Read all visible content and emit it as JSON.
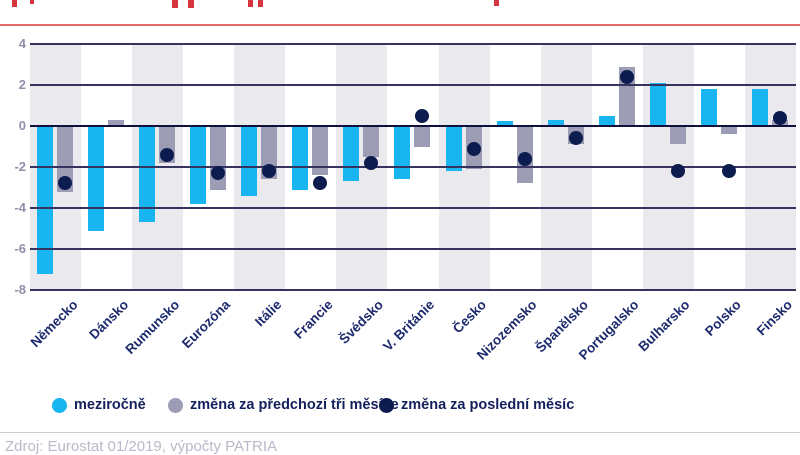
{
  "header": {
    "accent_line_color": "#e36b6b",
    "title_fragment_color": "#d4353f",
    "title_fragments": [
      {
        "x": 12,
        "w": 5,
        "h": 7
      },
      {
        "x": 30,
        "w": 4,
        "h": 4
      },
      {
        "x": 172,
        "w": 6,
        "h": 8
      },
      {
        "x": 188,
        "w": 6,
        "h": 8
      },
      {
        "x": 248,
        "w": 5,
        "h": 7
      },
      {
        "x": 258,
        "w": 5,
        "h": 7
      },
      {
        "x": 494,
        "w": 5,
        "h": 6
      }
    ]
  },
  "chart_data": {
    "type": "bar",
    "title": "",
    "categories": [
      "Německo",
      "Dánsko",
      "Rumunsko",
      "Eurozóna",
      "Itálie",
      "Francie",
      "Švédsko",
      "V. Británie",
      "Česko",
      "Nizozemsko",
      "Španělsko",
      "Portugalsko",
      "Bulharsko",
      "Polsko",
      "Finsko"
    ],
    "series": [
      {
        "name": "meziročně",
        "kind": "bar",
        "color": "#18b5f0",
        "values": [
          -7.2,
          -5.1,
          -4.7,
          -3.8,
          -3.4,
          -3.1,
          -2.7,
          -2.6,
          -2.2,
          0.25,
          0.3,
          0.5,
          2.1,
          1.8,
          1.8
        ]
      },
      {
        "name": "změna za předchozí tři měsíce",
        "kind": "bar",
        "color": "#9c9cb4",
        "values": [
          -3.2,
          0.3,
          -1.8,
          -3.1,
          -2.6,
          -2.4,
          -1.5,
          -1.0,
          -2.1,
          -2.8,
          -0.9,
          2.9,
          -0.9,
          -0.4,
          0.3
        ]
      },
      {
        "name": "změna za poslední měsíc",
        "kind": "point",
        "color": "#0d1c4f",
        "values": [
          -2.8,
          null,
          -1.4,
          -2.3,
          -2.2,
          -2.8,
          -1.8,
          0.5,
          -1.1,
          -1.6,
          -0.6,
          2.4,
          -2.2,
          -2.2,
          0.4
        ]
      }
    ],
    "ylim": [
      -8,
      4
    ],
    "yticks": [
      4,
      2,
      0,
      -2,
      -4,
      -6,
      -8
    ],
    "grid": true,
    "gridline_color": "#34345e",
    "zeroline_color": "#10103c",
    "band_colors": [
      "#e9e9ee",
      "#ffffff"
    ],
    "legend_position": "bottom"
  },
  "footer": {
    "divider_color": "#cdcdda",
    "source": "Zdroj: Eurostat 01/2019, výpočty PATRIA"
  }
}
